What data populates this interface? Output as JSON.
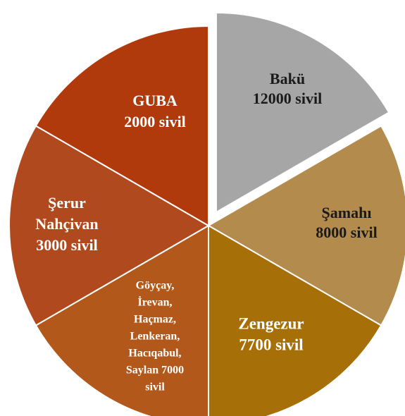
{
  "segments": [
    {
      "lines": [
        "Bakü",
        "12000 sivil"
      ],
      "color": "#a6a6a6",
      "text_color": "#1a1a1a"
    },
    {
      "lines": [
        "Şamahı",
        "8000 sivil"
      ],
      "color": "#b38b4d",
      "text_color": "#1a1a1a"
    },
    {
      "lines": [
        "Zengezur",
        "7700 sivil"
      ],
      "color": "#a66f08",
      "text_color": "#ffffff"
    },
    {
      "lines": [
        "Göyçay,",
        "İrevan,",
        "Haçmaz,",
        "Lenkeran,",
        "Hacıqabul,",
        "Saylan 7000",
        "sivil"
      ],
      "color": "#b3581b",
      "text_color": "#ffffff"
    },
    {
      "lines": [
        "Şerur",
        "Nahçivan",
        "3000 sivil"
      ],
      "color": "#b04a1e",
      "text_color": "#ffffff"
    },
    {
      "lines": [
        "GUBA",
        "2000 sivil"
      ],
      "color": "#b03a0c",
      "text_color": "#ffffff"
    }
  ]
}
